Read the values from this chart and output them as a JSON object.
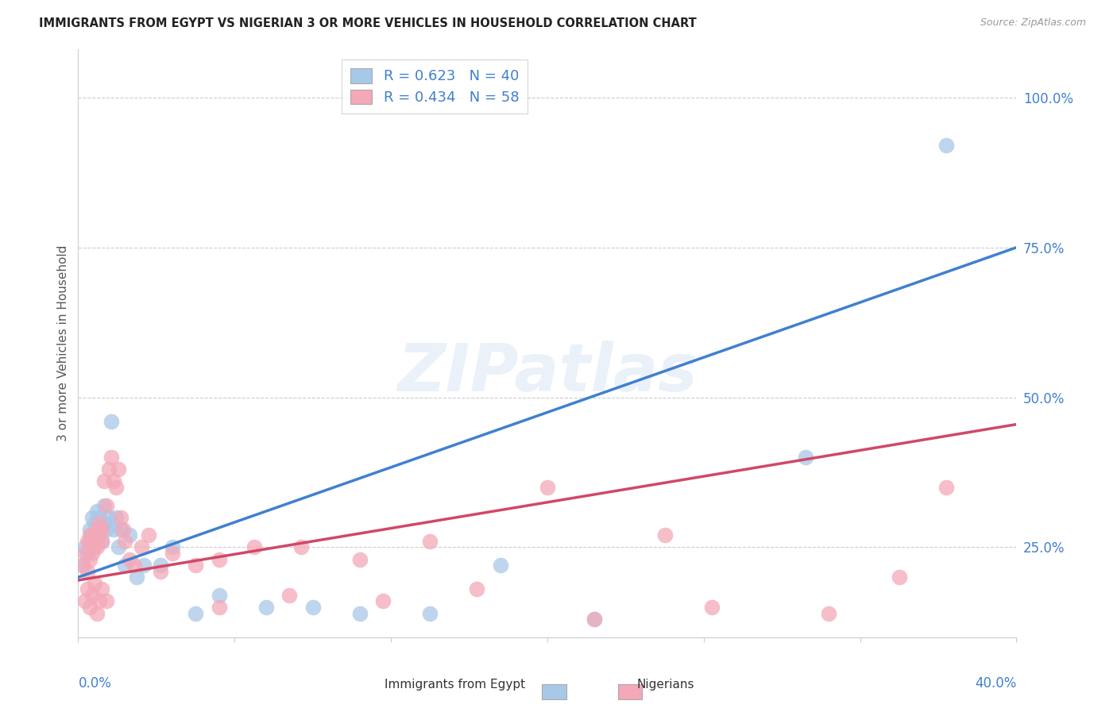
{
  "title": "IMMIGRANTS FROM EGYPT VS NIGERIAN 3 OR MORE VEHICLES IN HOUSEHOLD CORRELATION CHART",
  "source": "Source: ZipAtlas.com",
  "ylabel": "3 or more Vehicles in Household",
  "egypt_color": "#a8c8e8",
  "nigeria_color": "#f4a8b8",
  "egypt_line_color": "#4080d0",
  "nigeria_line_color": "#d04868",
  "watermark_text": "ZIPatlas",
  "xmin": 0.0,
  "xmax": 0.4,
  "ymin": 0.1,
  "ymax": 1.08,
  "egypt_line_x0": 0.0,
  "egypt_line_y0": 0.2,
  "egypt_line_x1": 0.4,
  "egypt_line_y1": 0.75,
  "nigeria_line_x0": 0.0,
  "nigeria_line_y0": 0.195,
  "nigeria_line_x1": 0.4,
  "nigeria_line_y1": 0.455,
  "ytick_positions": [
    0.25,
    0.5,
    0.75,
    1.0
  ],
  "ytick_labels": [
    "25.0%",
    "50.0%",
    "75.0%",
    "100.0%"
  ],
  "xtick_positions": [
    0.0,
    0.0667,
    0.1333,
    0.2,
    0.2667,
    0.3333,
    0.4
  ],
  "egypt_R": 0.623,
  "egypt_N": 40,
  "nigeria_R": 0.434,
  "nigeria_N": 58,
  "egypt_scatter_x": [
    0.002,
    0.003,
    0.004,
    0.005,
    0.005,
    0.006,
    0.006,
    0.007,
    0.007,
    0.008,
    0.008,
    0.009,
    0.009,
    0.01,
    0.01,
    0.011,
    0.011,
    0.012,
    0.013,
    0.014,
    0.015,
    0.016,
    0.017,
    0.018,
    0.02,
    0.022,
    0.025,
    0.028,
    0.035,
    0.04,
    0.05,
    0.06,
    0.08,
    0.1,
    0.12,
    0.15,
    0.18,
    0.22,
    0.31,
    0.37
  ],
  "egypt_scatter_y": [
    0.22,
    0.25,
    0.24,
    0.28,
    0.26,
    0.3,
    0.27,
    0.29,
    0.26,
    0.31,
    0.28,
    0.27,
    0.3,
    0.28,
    0.26,
    0.29,
    0.32,
    0.28,
    0.3,
    0.46,
    0.28,
    0.3,
    0.25,
    0.28,
    0.22,
    0.27,
    0.2,
    0.22,
    0.22,
    0.25,
    0.14,
    0.17,
    0.15,
    0.15,
    0.14,
    0.14,
    0.22,
    0.13,
    0.4,
    0.92
  ],
  "nigeria_scatter_x": [
    0.002,
    0.003,
    0.004,
    0.004,
    0.005,
    0.005,
    0.006,
    0.006,
    0.007,
    0.007,
    0.008,
    0.008,
    0.009,
    0.009,
    0.01,
    0.01,
    0.011,
    0.012,
    0.013,
    0.014,
    0.015,
    0.016,
    0.017,
    0.018,
    0.019,
    0.02,
    0.022,
    0.024,
    0.027,
    0.03,
    0.035,
    0.04,
    0.05,
    0.06,
    0.075,
    0.095,
    0.12,
    0.15,
    0.2,
    0.25,
    0.06,
    0.09,
    0.13,
    0.17,
    0.22,
    0.27,
    0.32,
    0.35,
    0.37,
    0.003,
    0.004,
    0.005,
    0.006,
    0.007,
    0.008,
    0.009,
    0.01,
    0.012
  ],
  "nigeria_scatter_y": [
    0.22,
    0.24,
    0.21,
    0.26,
    0.23,
    0.27,
    0.24,
    0.26,
    0.25,
    0.27,
    0.28,
    0.25,
    0.27,
    0.29,
    0.26,
    0.28,
    0.36,
    0.32,
    0.38,
    0.4,
    0.36,
    0.35,
    0.38,
    0.3,
    0.28,
    0.26,
    0.23,
    0.22,
    0.25,
    0.27,
    0.21,
    0.24,
    0.22,
    0.23,
    0.25,
    0.25,
    0.23,
    0.26,
    0.35,
    0.27,
    0.15,
    0.17,
    0.16,
    0.18,
    0.13,
    0.15,
    0.14,
    0.2,
    0.35,
    0.16,
    0.18,
    0.15,
    0.17,
    0.19,
    0.14,
    0.16,
    0.18,
    0.16
  ]
}
